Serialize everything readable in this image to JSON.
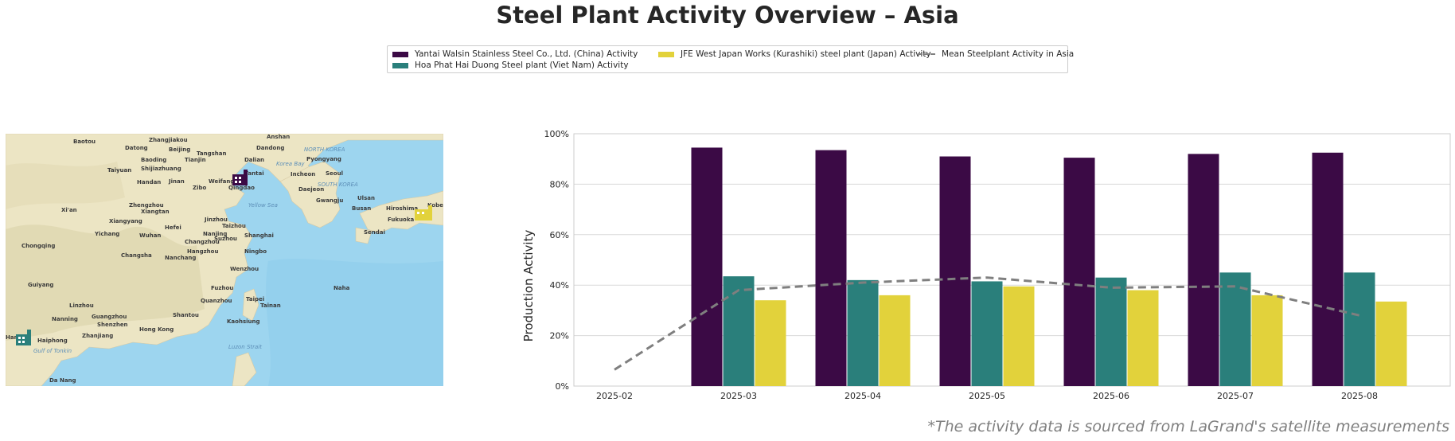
{
  "title": "Steel Plant Activity Overview – Asia",
  "footnote": "*The activity data is sourced from LaGrand's satellite measurements",
  "legend": {
    "series1": "Yantai Walsin Stainless Steel Co., Ltd. (China) Activity",
    "series2": "Hoa Phat Hai Duong Steel plant (Viet Nam) Activity",
    "series3": "JFE West Japan Works (Kurashiki) steel plant (Japan) Activity",
    "mean": "Mean Steelplant Activity in Asia"
  },
  "colors": {
    "series1": "#3b0a45",
    "series2": "#2a7f7b",
    "series3": "#e2d23b",
    "mean": "#7f7f7f"
  },
  "map": {
    "icons": [
      "factory-icon-china",
      "factory-icon-vietnam",
      "factory-icon-japan"
    ],
    "labels": [
      "Baotou",
      "Zhangjiakou",
      "Anshan",
      "Datong",
      "Beijing",
      "Tangshan",
      "Dandong",
      "NORTH KOREA",
      "Baoding",
      "Dalian",
      "Pyongyang",
      "Taiyuan",
      "Shijiazhuang",
      "Yantai",
      "Korea Bay",
      "Handan",
      "Jinan",
      "Weifang",
      "Incheon",
      "Seoul",
      "Zibo",
      "Qingdao",
      "SOUTH KOREA",
      "Daejeon",
      "Zhengzhou",
      "Yellow Sea",
      "Gwangju",
      "Ulsan",
      "Hiroshima",
      "Kobe",
      "Xi'an",
      "Busan",
      "Fukuoka",
      "Xiangyang",
      "Hefei",
      "Taizhou",
      "Xiangtan",
      "Nanjing",
      "Chongqing",
      "Yichang",
      "Wuhan",
      "Changzhou",
      "Suzhou",
      "Shanghai",
      "Hangzhou",
      "Ningbo",
      "Changsha",
      "Nanchang",
      "Wenzhou",
      "Guiyang",
      "Fuzhou",
      "Naha",
      "Quanzhou",
      "Taipei",
      "Nanning",
      "Guangzhou",
      "Shantou",
      "Shenzhen",
      "Hong Kong",
      "Kaohsiung",
      "Hanoi",
      "Haiphong",
      "Zhanjiang",
      "Gulf of Tonkin",
      "Luzon Strait",
      "Da Nang",
      "Tianjin",
      "Jinzhou",
      "Linzhou",
      "Sendai",
      "Tainan"
    ]
  },
  "chart_data": {
    "type": "bar",
    "categories": [
      "2025-02",
      "2025-03",
      "2025-04",
      "2025-05",
      "2025-06",
      "2025-07",
      "2025-08"
    ],
    "series": [
      {
        "name": "Yantai Walsin Stainless Steel Co., Ltd. (China) Activity",
        "values": [
          null,
          94.5,
          93.5,
          91,
          90.5,
          92,
          92.5
        ]
      },
      {
        "name": "Hoa Phat Hai Duong Steel plant (Viet Nam) Activity",
        "values": [
          null,
          43.5,
          42,
          41.5,
          43,
          45,
          45
        ]
      },
      {
        "name": "JFE West Japan Works (Kurashiki) steel plant (Japan) Activity",
        "values": [
          null,
          34,
          36,
          39.5,
          38,
          36,
          33.5
        ]
      }
    ],
    "line": {
      "name": "Mean Steelplant Activity in Asia",
      "style": "dashed",
      "values": [
        6.5,
        38,
        41,
        43,
        39,
        39.5,
        28
      ]
    },
    "ylabel": "Production Activity",
    "xlabel": "",
    "ylim": [
      0,
      100
    ],
    "yticks": [
      "0%",
      "20%",
      "40%",
      "60%",
      "80%",
      "100%"
    ],
    "grid": "horizontal",
    "legend_position": "top-center"
  }
}
